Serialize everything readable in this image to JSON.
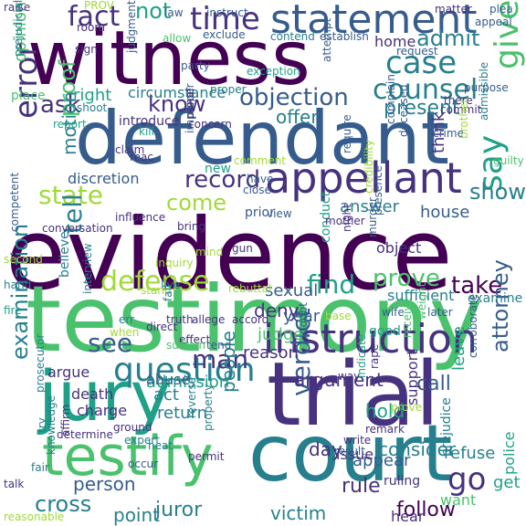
{
  "colors": {
    "background": "#ffffff",
    "c1": "#440154",
    "c2": "#46327e",
    "c3": "#365c8d",
    "c4": "#277f8e",
    "c5": "#1fa187",
    "c6": "#4ac16d",
    "c7": "#a0da39",
    "c8": "#fde725"
  },
  "words": [
    {
      "t": "evidence",
      "c": "c1"
    },
    {
      "t": "testimony",
      "c": "c6"
    },
    {
      "t": "defendant",
      "c": "c3"
    },
    {
      "t": "witness",
      "c": "c1"
    },
    {
      "t": "trial",
      "c": "c2"
    },
    {
      "t": "court",
      "c": "c4"
    },
    {
      "t": "jury",
      "c": "c5"
    },
    {
      "t": "testify",
      "c": "c6"
    },
    {
      "t": "statement",
      "c": "c3"
    },
    {
      "t": "appellant",
      "c": "c2"
    },
    {
      "t": "instruction",
      "c": "c2"
    },
    {
      "t": "question",
      "c": "c4"
    },
    {
      "t": "counsel",
      "c": "c4"
    },
    {
      "t": "case",
      "c": "c4"
    },
    {
      "t": "time",
      "c": "c2"
    },
    {
      "t": "fact",
      "c": "c2"
    },
    {
      "t": "objection",
      "c": "c3"
    },
    {
      "t": "error",
      "c": "c2"
    },
    {
      "t": "give",
      "c": "c6"
    },
    {
      "t": "state",
      "c": "c7"
    },
    {
      "t": "record",
      "c": "c2"
    },
    {
      "t": "defense",
      "c": "c7"
    },
    {
      "t": "find",
      "c": "c5"
    },
    {
      "t": "say",
      "c": "c5"
    },
    {
      "t": "tell",
      "c": "c4"
    },
    {
      "t": "verdict",
      "c": "c3"
    },
    {
      "t": "examination",
      "c": "c4"
    },
    {
      "t": "show",
      "c": "c4"
    },
    {
      "t": "prove",
      "c": "c6"
    },
    {
      "t": "take",
      "c": "c1"
    },
    {
      "t": "see",
      "c": "c3"
    },
    {
      "t": "man",
      "c": "c2"
    },
    {
      "t": "ask",
      "c": "c2"
    },
    {
      "t": "admit",
      "c": "c4"
    },
    {
      "t": "present",
      "c": "c4"
    },
    {
      "t": "know",
      "c": "c2"
    },
    {
      "t": "come",
      "c": "c7"
    },
    {
      "t": "not",
      "c": "c5"
    },
    {
      "t": "go",
      "c": "c2"
    },
    {
      "t": "cross",
      "c": "c4"
    },
    {
      "t": "point",
      "c": "c4"
    },
    {
      "t": "juror",
      "c": "c4"
    },
    {
      "t": "rule",
      "c": "c2"
    },
    {
      "t": "follow",
      "c": "c1"
    },
    {
      "t": "victim",
      "c": "c4"
    },
    {
      "t": "call",
      "c": "c3"
    },
    {
      "t": "argument",
      "c": "c2"
    },
    {
      "t": "proof",
      "c": "c6"
    },
    {
      "t": "motion",
      "c": "c4"
    },
    {
      "t": "offer",
      "c": "c4"
    },
    {
      "t": "deny",
      "c": "c2"
    },
    {
      "t": "hold",
      "c": "c5"
    },
    {
      "t": "attorney",
      "c": "c3"
    },
    {
      "t": "answer",
      "c": "c4"
    },
    {
      "t": "house",
      "c": "c3"
    },
    {
      "t": "opinion",
      "c": "c6"
    },
    {
      "t": "right",
      "c": "c5"
    },
    {
      "t": "circumstance",
      "c": "c4"
    },
    {
      "t": "year",
      "c": "c3"
    },
    {
      "t": "admission",
      "c": "c5"
    },
    {
      "t": "person",
      "c": "c3"
    },
    {
      "t": "people",
      "c": "c4"
    },
    {
      "t": "consider",
      "c": "c4"
    },
    {
      "t": "day",
      "c": "c2"
    },
    {
      "t": "judge",
      "c": "c6"
    },
    {
      "t": "reason",
      "c": "c2"
    },
    {
      "t": "act",
      "c": "c4"
    },
    {
      "t": "return",
      "c": "c4"
    },
    {
      "t": "abuse",
      "c": "c3"
    },
    {
      "t": "police",
      "c": "c5"
    },
    {
      "t": "leave",
      "c": "c5"
    },
    {
      "t": "argue",
      "c": "c2"
    },
    {
      "t": "charge",
      "c": "c2"
    },
    {
      "t": "death",
      "c": "c2"
    },
    {
      "t": "appear",
      "c": "c3"
    },
    {
      "t": "sexual",
      "c": "c3"
    },
    {
      "t": "refuse",
      "c": "c4"
    },
    {
      "t": "want",
      "c": "c6"
    },
    {
      "t": "get",
      "c": "c5"
    },
    {
      "t": "hear",
      "c": "c2"
    },
    {
      "t": "support",
      "c": "c2"
    },
    {
      "t": "issue",
      "c": "c2"
    },
    {
      "t": "discretion",
      "c": "c3"
    },
    {
      "t": "think",
      "c": "c2"
    },
    {
      "t": "home",
      "c": "c2"
    },
    {
      "t": "conversation",
      "c": "c2"
    },
    {
      "t": "influence",
      "c": "c2"
    },
    {
      "t": "object",
      "c": "c2"
    },
    {
      "t": "sufficient",
      "c": "c4"
    },
    {
      "t": "examine",
      "c": "c4"
    },
    {
      "t": "prejudice",
      "c": "c4"
    },
    {
      "t": "ruling",
      "c": "c2"
    },
    {
      "t": "place",
      "c": "c6"
    },
    {
      "t": "introduce",
      "c": "c2"
    },
    {
      "t": "concern",
      "c": "c2"
    },
    {
      "t": "new",
      "c": "c5"
    },
    {
      "t": "prior",
      "c": "c3"
    },
    {
      "t": "view",
      "c": "c3"
    },
    {
      "t": "bring",
      "c": "c2"
    },
    {
      "t": "truth",
      "c": "c2"
    },
    {
      "t": "direct",
      "c": "c2"
    },
    {
      "t": "allege",
      "c": "c2"
    },
    {
      "t": "accord",
      "c": "c2"
    },
    {
      "t": "effect",
      "c": "c2"
    },
    {
      "t": "tend",
      "c": "c3"
    },
    {
      "t": "sustain",
      "c": "c6"
    },
    {
      "t": "doubt",
      "c": "c3"
    },
    {
      "t": "write",
      "c": "c2"
    },
    {
      "t": "result",
      "c": "c3"
    },
    {
      "t": "remark",
      "c": "c2"
    },
    {
      "t": "good",
      "c": "c5"
    },
    {
      "t": "wife",
      "c": "c3"
    },
    {
      "t": "later",
      "c": "c3"
    },
    {
      "t": "night",
      "c": "c2"
    },
    {
      "t": "conduct",
      "c": "c5"
    },
    {
      "t": "murder",
      "c": "c3"
    },
    {
      "t": "presence",
      "c": "c3"
    },
    {
      "t": "complain",
      "c": "c3"
    },
    {
      "t": "deceased",
      "c": "c3"
    },
    {
      "t": "crime",
      "c": "c3"
    },
    {
      "t": "commit",
      "c": "c2"
    },
    {
      "t": "there",
      "c": "c2"
    },
    {
      "t": "admissible",
      "c": "c4"
    },
    {
      "t": "guilty",
      "c": "c6"
    },
    {
      "t": "brother",
      "c": "c7"
    },
    {
      "t": "purpose",
      "c": "c3"
    },
    {
      "t": "raise",
      "c": "c2"
    },
    {
      "t": "law",
      "c": "c3"
    },
    {
      "t": "instruct",
      "c": "c3"
    },
    {
      "t": "matter",
      "c": "c2"
    },
    {
      "t": "prejudicial",
      "c": "c4"
    },
    {
      "t": "room",
      "c": "c2"
    },
    {
      "t": "allow",
      "c": "c6"
    },
    {
      "t": "exclude",
      "c": "c3"
    },
    {
      "t": "contend",
      "c": "c4"
    },
    {
      "t": "establish",
      "c": "c3"
    },
    {
      "t": "appeal",
      "c": "c3"
    },
    {
      "t": "request",
      "c": "c3"
    },
    {
      "t": "judgment",
      "c": "c3"
    },
    {
      "t": "party",
      "c": "c3"
    },
    {
      "t": "sign",
      "c": "c2"
    },
    {
      "t": "exception",
      "c": "c5"
    },
    {
      "t": "proper",
      "c": "c4"
    },
    {
      "t": "attempt",
      "c": "c3"
    },
    {
      "t": "report",
      "c": "c5"
    },
    {
      "t": "shoot",
      "c": "c4"
    },
    {
      "t": "kill",
      "c": "c5"
    },
    {
      "t": "improper",
      "c": "c3"
    },
    {
      "t": "comment",
      "c": "c7"
    },
    {
      "t": "require",
      "c": "c3"
    },
    {
      "t": "close",
      "c": "c3"
    },
    {
      "t": "have",
      "c": "c3"
    },
    {
      "t": "mother",
      "c": "c2"
    },
    {
      "t": "credibility",
      "c": "c7"
    },
    {
      "t": "mind",
      "c": "c7"
    },
    {
      "t": "gun",
      "c": "c2"
    },
    {
      "t": "interview",
      "c": "c4"
    },
    {
      "t": "believe",
      "c": "c4"
    },
    {
      "t": "live",
      "c": "c4"
    },
    {
      "t": "stand",
      "c": "c7"
    },
    {
      "t": "err",
      "c": "c4"
    },
    {
      "t": "fail",
      "c": "c4"
    },
    {
      "t": "prosecutor",
      "c": "c4"
    },
    {
      "t": "determine",
      "c": "c2"
    },
    {
      "t": "occur",
      "c": "c3"
    },
    {
      "t": "knowledge",
      "c": "c4"
    },
    {
      "t": "expert",
      "c": "c4"
    },
    {
      "t": "ground",
      "c": "c2"
    },
    {
      "t": "affirm",
      "c": "c2"
    },
    {
      "t": "try",
      "c": "c4"
    },
    {
      "t": "talk",
      "c": "c2"
    },
    {
      "t": "fair",
      "c": "c4"
    },
    {
      "t": "reasonable",
      "c": "c7"
    },
    {
      "t": "permit",
      "c": "c2"
    },
    {
      "t": "property",
      "c": "c4"
    },
    {
      "t": "reverse",
      "c": "c4"
    },
    {
      "t": "indicate",
      "c": "c5"
    },
    {
      "t": "corroborate",
      "c": "c3"
    },
    {
      "t": "receive",
      "c": "c6"
    },
    {
      "t": "weight",
      "c": "c6"
    },
    {
      "t": "competent",
      "c": "c3"
    },
    {
      "t": "second",
      "c": "c7"
    },
    {
      "t": "hand",
      "c": "c4"
    },
    {
      "t": "fire",
      "c": "c5"
    },
    {
      "t": "rebuttal",
      "c": "c7"
    },
    {
      "t": "way",
      "c": "c2"
    },
    {
      "t": "when",
      "c": "c7"
    },
    {
      "t": "base",
      "c": "c7"
    },
    {
      "t": "rape",
      "c": "c2"
    },
    {
      "t": "PROV",
      "c": "c7"
    },
    {
      "t": "claim",
      "c": "c2"
    },
    {
      "t": "inquiry",
      "c": "c7"
    },
    {
      "t": "penal",
      "c": "c2"
    },
    {
      "t": "reac",
      "c": "c2"
    },
    {
      "t": "heat",
      "c": "c4"
    },
    {
      "t": "plea",
      "c": "c3"
    },
    {
      "t": "prove",
      "c": "c7"
    }
  ]
}
